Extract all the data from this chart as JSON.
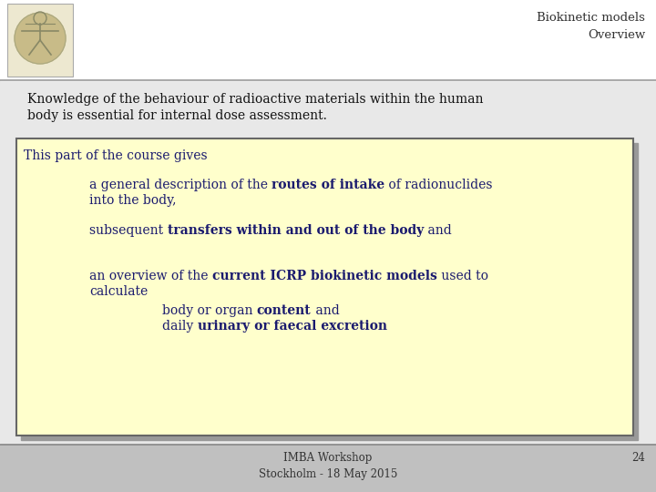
{
  "title": "Biokinetic models",
  "subtitle": "Overview",
  "bg_color": "#e8e8e8",
  "header_bg": "#ffffff",
  "header_line_color": "#999999",
  "intro_line1": "Knowledge of the behaviour of radioactive materials within the human",
  "intro_line2": "body is essential for internal dose assessment.",
  "box_bg": "#ffffcc",
  "box_border_color": "#666666",
  "box_shadow_color": "#999999",
  "box_title": "This part of the course gives",
  "text_color": "#1a1a6e",
  "intro_color": "#111111",
  "footer_bg": "#c0c0c0",
  "footer_line_color": "#888888",
  "footer_center": "IMBA Workshop\nStockholm - 18 May 2015",
  "footer_num": "24",
  "footer_color": "#333333",
  "title_color": "#333333",
  "font_size_title": 9.5,
  "font_size_intro": 10,
  "font_size_box": 10,
  "font_size_footer": 8.5
}
